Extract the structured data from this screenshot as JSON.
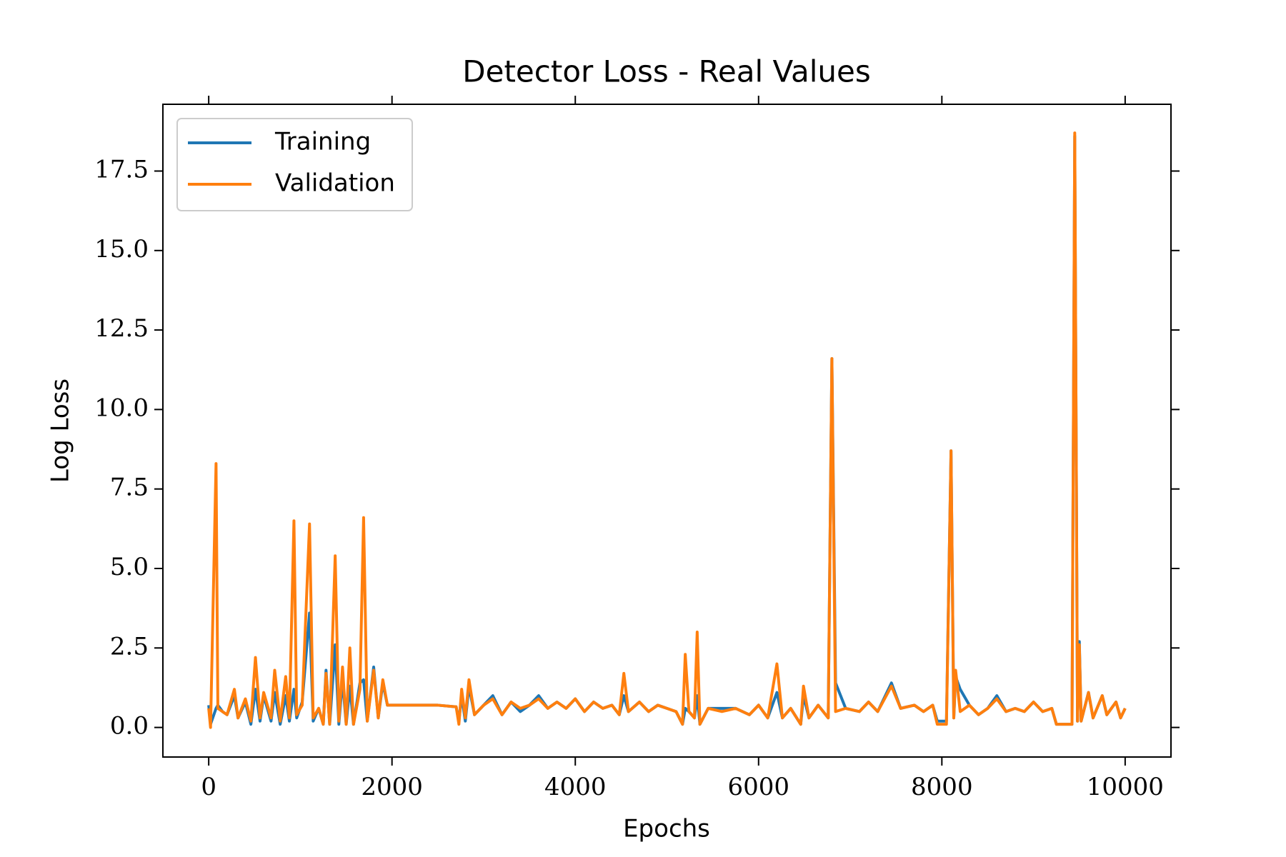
{
  "chart_data": {
    "type": "line",
    "title": "Detector Loss - Real Values",
    "xlabel": "Epochs",
    "ylabel": "Log Loss",
    "x": [
      0,
      20,
      80,
      100,
      150,
      200,
      280,
      320,
      400,
      460,
      510,
      560,
      600,
      680,
      720,
      780,
      840,
      880,
      930,
      960,
      1020,
      1100,
      1140,
      1200,
      1250,
      1280,
      1320,
      1380,
      1420,
      1460,
      1500,
      1540,
      1580,
      1650,
      1690,
      1730,
      1800,
      1850,
      1900,
      1950,
      2200,
      2500,
      2700,
      2730,
      2760,
      2800,
      2840,
      2900,
      3000,
      3100,
      3200,
      3300,
      3400,
      3500,
      3600,
      3700,
      3800,
      3900,
      4000,
      4100,
      4200,
      4300,
      4400,
      4480,
      4530,
      4580,
      4700,
      4800,
      4900,
      5000,
      5100,
      5170,
      5200,
      5240,
      5300,
      5330,
      5360,
      5450,
      5600,
      5750,
      5900,
      6000,
      6100,
      6200,
      6260,
      6350,
      6460,
      6490,
      6550,
      6650,
      6760,
      6800,
      6840,
      6950,
      7100,
      7200,
      7300,
      7450,
      7550,
      7700,
      7800,
      7900,
      7950,
      8050,
      8100,
      8130,
      8150,
      8200,
      8300,
      8400,
      8500,
      8600,
      8700,
      8800,
      8900,
      9000,
      9100,
      9200,
      9250,
      9350,
      9420,
      9450,
      9480,
      9500,
      9520,
      9600,
      9650,
      9750,
      9800,
      9900,
      9950,
      10000
    ],
    "series": [
      {
        "name": "Training",
        "color": "#1f77b4",
        "values": [
          0.7,
          0.1,
          0.6,
          0.7,
          0.5,
          0.4,
          1.0,
          0.3,
          0.8,
          0.1,
          1.2,
          0.2,
          1.0,
          0.2,
          1.1,
          0.1,
          1.0,
          0.2,
          1.2,
          0.3,
          0.8,
          3.6,
          0.2,
          0.6,
          0.1,
          1.8,
          0.1,
          2.6,
          0.1,
          1.5,
          0.1,
          1.3,
          0.1,
          1.4,
          1.5,
          0.2,
          1.9,
          0.3,
          1.4,
          0.7,
          0.7,
          0.7,
          0.65,
          0.2,
          1.0,
          0.2,
          1.3,
          0.4,
          0.7,
          1.0,
          0.4,
          0.8,
          0.5,
          0.7,
          1.0,
          0.6,
          0.8,
          0.6,
          0.9,
          0.5,
          0.8,
          0.6,
          0.7,
          0.4,
          1.0,
          0.5,
          0.8,
          0.5,
          0.7,
          0.6,
          0.5,
          0.1,
          0.6,
          0.5,
          0.3,
          1.0,
          0.1,
          0.6,
          0.6,
          0.6,
          0.4,
          0.7,
          0.3,
          1.1,
          0.3,
          0.6,
          0.1,
          1.0,
          0.3,
          0.7,
          0.3,
          11.6,
          1.4,
          0.6,
          0.5,
          0.8,
          0.5,
          1.4,
          0.6,
          0.7,
          0.5,
          0.7,
          0.2,
          0.2,
          8.7,
          0.3,
          1.6,
          1.2,
          0.7,
          0.4,
          0.6,
          1.0,
          0.5,
          0.6,
          0.5,
          0.8,
          0.5,
          0.6,
          0.1,
          0.1,
          0.1,
          18.6,
          0.2,
          2.7,
          0.2,
          1.1,
          0.3,
          1.0,
          0.4,
          0.8,
          0.3,
          0.6
        ]
      },
      {
        "name": "Validation",
        "color": "#ff7f0e",
        "values": [
          0.6,
          0.0,
          8.3,
          0.6,
          0.5,
          0.4,
          1.2,
          0.3,
          0.9,
          0.2,
          2.2,
          0.3,
          1.1,
          0.3,
          1.8,
          0.2,
          1.6,
          0.3,
          6.5,
          0.4,
          0.7,
          6.4,
          0.3,
          0.6,
          0.1,
          1.7,
          0.1,
          5.4,
          0.2,
          1.9,
          0.1,
          2.5,
          0.1,
          1.2,
          6.6,
          0.2,
          1.8,
          0.3,
          1.5,
          0.7,
          0.7,
          0.7,
          0.65,
          0.1,
          1.2,
          0.3,
          1.5,
          0.4,
          0.7,
          0.9,
          0.4,
          0.8,
          0.6,
          0.7,
          0.9,
          0.6,
          0.8,
          0.6,
          0.9,
          0.5,
          0.8,
          0.6,
          0.7,
          0.4,
          1.7,
          0.5,
          0.8,
          0.5,
          0.7,
          0.6,
          0.5,
          0.1,
          2.3,
          0.5,
          0.3,
          3.0,
          0.1,
          0.6,
          0.5,
          0.6,
          0.4,
          0.7,
          0.3,
          2.0,
          0.3,
          0.6,
          0.1,
          1.3,
          0.3,
          0.7,
          0.3,
          11.6,
          0.5,
          0.6,
          0.5,
          0.8,
          0.5,
          1.3,
          0.6,
          0.7,
          0.5,
          0.7,
          0.1,
          0.1,
          8.7,
          0.3,
          1.8,
          0.5,
          0.7,
          0.4,
          0.6,
          0.9,
          0.5,
          0.6,
          0.5,
          0.8,
          0.5,
          0.6,
          0.1,
          0.1,
          0.1,
          18.7,
          0.2,
          2.6,
          0.2,
          1.1,
          0.3,
          1.0,
          0.4,
          0.8,
          0.3,
          0.6
        ]
      }
    ],
    "xlim": [
      -500,
      10500
    ],
    "ylim": [
      -0.93,
      19.6
    ],
    "xticks": [
      0,
      2000,
      4000,
      6000,
      8000,
      10000
    ],
    "yticks": [
      {
        "value": 0,
        "label": "0.0"
      },
      {
        "value": 2.5,
        "label": "2.5"
      },
      {
        "value": 5,
        "label": "5.0"
      },
      {
        "value": 7.5,
        "label": "7.5"
      },
      {
        "value": 10,
        "label": "10.0"
      },
      {
        "value": 12.5,
        "label": "12.5"
      },
      {
        "value": 15,
        "label": "15.0"
      },
      {
        "value": 17.5,
        "label": "17.5"
      }
    ],
    "legend": "upper left"
  }
}
